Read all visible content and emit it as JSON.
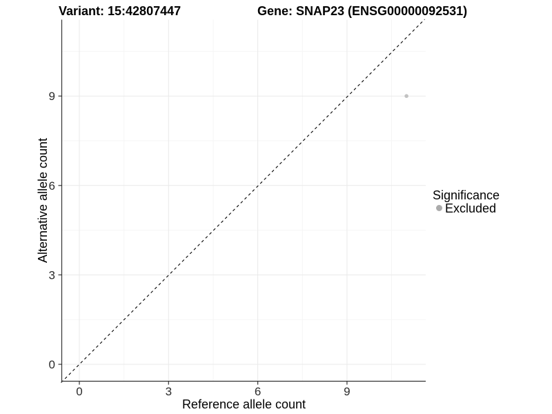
{
  "header": {
    "variant_title": "Variant: 15:42807447",
    "gene_title": "Gene: SNAP23 (ENSG00000092531)"
  },
  "chart_data": {
    "type": "scatter",
    "title_left": "Variant: 15:42807447",
    "title_right": "Gene: SNAP23 (ENSG00000092531)",
    "xlabel": "Reference allele count",
    "ylabel": "Alternative allele count",
    "xlim": [
      -0.6,
      11.6
    ],
    "ylim": [
      -0.6,
      11.6
    ],
    "x_ticks": [
      "0",
      "3",
      "6",
      "9"
    ],
    "y_ticks": [
      "0",
      "3",
      "6",
      "9"
    ],
    "grid": {
      "major": true,
      "minor": true
    },
    "identity_line": {
      "style": "dashed",
      "slope": 1,
      "intercept": 0,
      "color": "#000000"
    },
    "series": [
      {
        "name": "Excluded",
        "color": "#c2c2c2",
        "point_radius": 2.8,
        "points": [
          [
            11,
            9
          ]
        ]
      }
    ],
    "legend": {
      "title": "Significance",
      "position": "right",
      "items": [
        {
          "label": "Excluded",
          "color": "#ababab"
        }
      ]
    }
  },
  "colors": {
    "background": "#ffffff",
    "grid_major": "#e9e9e9",
    "grid_minor": "#f5f5f5",
    "axis_line": "#333333",
    "tick_label": "#2b2b2b"
  }
}
